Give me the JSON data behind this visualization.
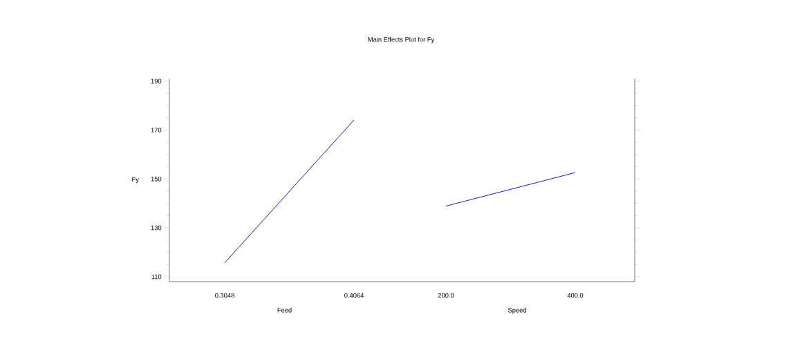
{
  "chart_data": [
    {
      "type": "line",
      "title": "Main Effects Plot for Fy",
      "ylabel": "Fy",
      "xlabel": "Feed",
      "categories": [
        "0.3048",
        "0.4064"
      ],
      "values": [
        115.7,
        174.1
      ],
      "color": "#0000ff",
      "ylim": [
        108,
        191
      ],
      "yticks": [
        110,
        130,
        150,
        170,
        190
      ]
    },
    {
      "type": "line",
      "xlabel": "Speed",
      "categories": [
        "200.0",
        "400.0"
      ],
      "values": [
        138.9,
        152.6
      ],
      "color": "#0000ff",
      "ylim": [
        108,
        191
      ],
      "yticks": [
        110,
        130,
        150,
        170,
        190
      ],
      "tick_labels": "x"
    }
  ]
}
